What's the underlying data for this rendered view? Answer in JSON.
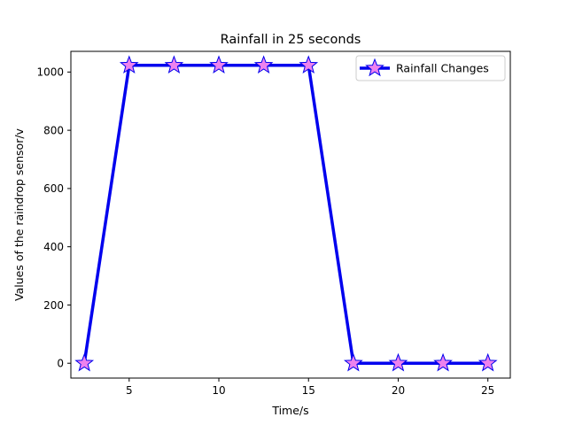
{
  "chart_data": {
    "type": "line",
    "title": "Rainfall in 25 seconds",
    "xlabel": "Time/s",
    "ylabel": "Values of the raindrop sensor/v",
    "xlim": [
      1.75,
      26.25
    ],
    "ylim": [
      -51,
      1071
    ],
    "x_ticks": [
      5,
      10,
      15,
      20,
      25
    ],
    "y_ticks": [
      0,
      200,
      400,
      600,
      800,
      1000
    ],
    "grid": false,
    "legend_position": "top-right",
    "series": [
      {
        "name": "Rainfall Changes",
        "color": "#0000ee",
        "marker": "star",
        "marker_fill": "#ee82ee",
        "marker_edge": "#0000ee",
        "x": [
          2.5,
          5,
          7.5,
          10,
          12.5,
          15,
          17.5,
          20,
          22.5,
          25
        ],
        "y": [
          0,
          1023,
          1023,
          1023,
          1023,
          1023,
          0,
          0,
          0,
          0
        ]
      }
    ]
  }
}
